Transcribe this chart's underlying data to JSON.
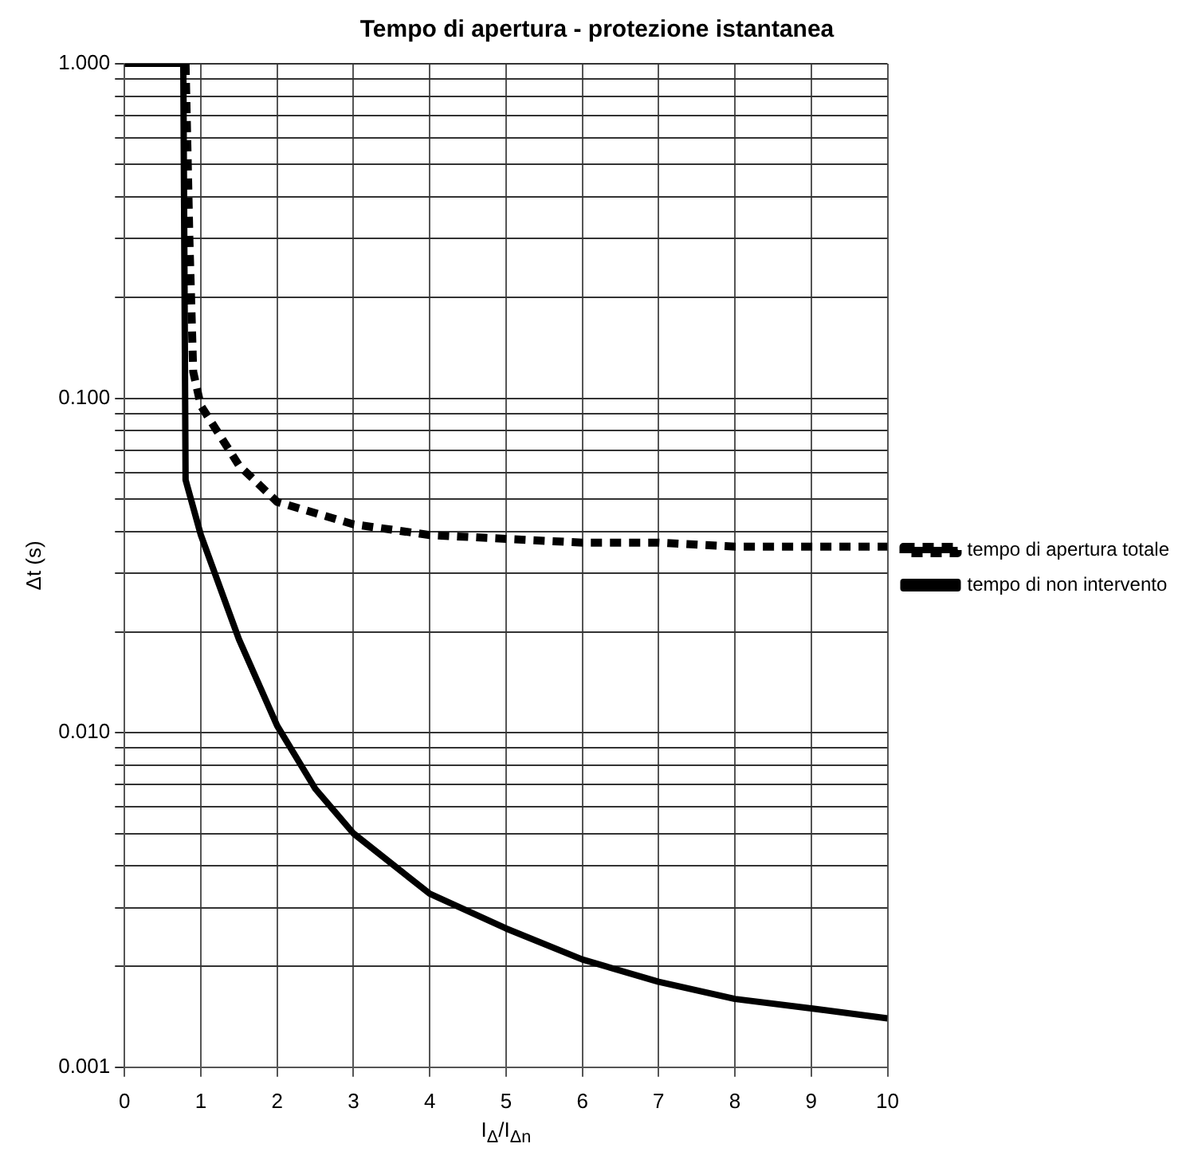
{
  "chart_data": {
    "type": "line",
    "title": "Tempo di apertura - protezione istantanea",
    "xlabel": "I$_{Δ}$/I$_{Δn}$",
    "ylabel": "Δt (s)",
    "xlim": [
      0,
      10
    ],
    "xticks": [
      0,
      1,
      2,
      3,
      4,
      5,
      6,
      7,
      8,
      9,
      10
    ],
    "ylim": [
      0.001,
      1
    ],
    "yticks": [
      {
        "value": 0.001,
        "label": "0.001"
      },
      {
        "value": 0.002,
        "label": null
      },
      {
        "value": 0.003,
        "label": null
      },
      {
        "value": 0.004,
        "label": null
      },
      {
        "value": 0.005,
        "label": null
      },
      {
        "value": 0.006,
        "label": null
      },
      {
        "value": 0.007,
        "label": null
      },
      {
        "value": 0.008,
        "label": null
      },
      {
        "value": 0.009,
        "label": null
      },
      {
        "value": 0.01,
        "label": "0.010"
      },
      {
        "value": 0.02,
        "label": null
      },
      {
        "value": 0.03,
        "label": null
      },
      {
        "value": 0.04,
        "label": null
      },
      {
        "value": 0.05,
        "label": null
      },
      {
        "value": 0.06,
        "label": null
      },
      {
        "value": 0.07,
        "label": null
      },
      {
        "value": 0.08,
        "label": null
      },
      {
        "value": 0.09,
        "label": null
      },
      {
        "value": 0.1,
        "label": "0.100"
      },
      {
        "value": 0.2,
        "label": null
      },
      {
        "value": 0.3,
        "label": null
      },
      {
        "value": 0.4,
        "label": null
      },
      {
        "value": 0.5,
        "label": null
      },
      {
        "value": 0.6,
        "label": null
      },
      {
        "value": 0.7,
        "label": null
      },
      {
        "value": 0.8,
        "label": null
      },
      {
        "value": 0.9,
        "label": null
      },
      {
        "value": 1,
        "label": "1.000"
      }
    ],
    "log": "y",
    "grid": true,
    "legend": "right",
    "marker": "none",
    "series": [
      {
        "name": "tempo di apertura totale",
        "color": "#000000",
        "line_style": "dashed",
        "x": [
          0.8,
          0.85,
          0.9,
          1,
          1.5,
          2,
          3,
          4,
          5,
          6,
          7,
          8,
          9,
          10
        ],
        "values": [
          1,
          0.3,
          0.12,
          0.095,
          0.063,
          0.049,
          0.042,
          0.039,
          0.038,
          0.037,
          0.037,
          0.036,
          0.036,
          0.036
        ]
      },
      {
        "name": "tempo di non intervento",
        "color": "#000000",
        "line_style": "solid",
        "x": [
          0,
          0.77,
          0.8,
          1,
          1.5,
          2,
          2.5,
          3,
          4,
          5,
          6,
          7,
          8,
          9,
          10
        ],
        "values": [
          1,
          1,
          0.057,
          0.039,
          0.019,
          0.0105,
          0.0068,
          0.005,
          0.0033,
          0.0026,
          0.0021,
          0.0018,
          0.0016,
          0.0015,
          0.0014
        ]
      }
    ]
  }
}
